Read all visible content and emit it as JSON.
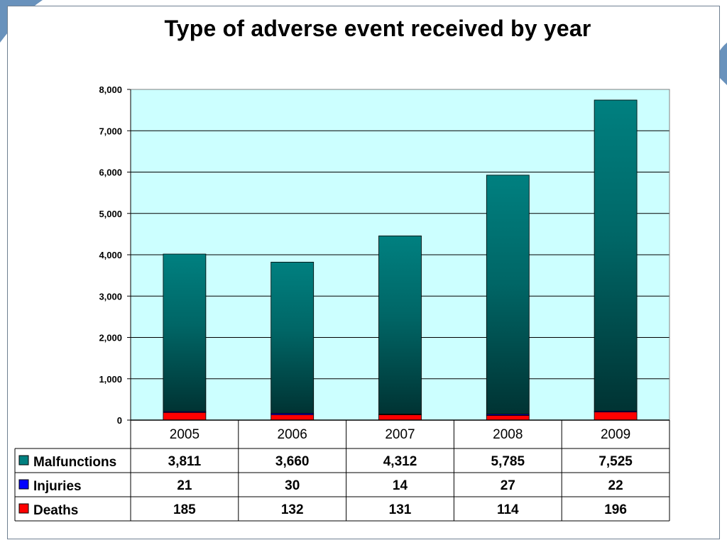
{
  "colors": {
    "plot_background": "#ccffff",
    "malfunctions_top": "#008080",
    "malfunctions_bottom": "#003333",
    "injuries": "#0000ff",
    "deaths": "#ff0000",
    "slide_accent": "#4f7fb0"
  },
  "chart_data": {
    "type": "bar",
    "stacked": true,
    "title": "Type of adverse event received by year",
    "categories": [
      "2005",
      "2006",
      "2007",
      "2008",
      "2009"
    ],
    "series": [
      {
        "name": "Malfunctions",
        "values": [
          3811,
          3660,
          4312,
          5785,
          7525
        ]
      },
      {
        "name": "Injuries",
        "values": [
          21,
          30,
          14,
          27,
          22
        ]
      },
      {
        "name": "Deaths",
        "values": [
          185,
          132,
          131,
          114,
          196
        ]
      }
    ],
    "stack_order_bottom_up": [
      "Deaths",
      "Injuries",
      "Malfunctions"
    ],
    "ylim": [
      0,
      8000
    ],
    "yticks": [
      0,
      1000,
      2000,
      3000,
      4000,
      5000,
      6000,
      7000,
      8000
    ],
    "ytick_labels": [
      "0",
      "1,000",
      "2,000",
      "3,000",
      "4,000",
      "5,000",
      "6,000",
      "7,000",
      "8,000"
    ],
    "grid": true,
    "legend": "data-table-below",
    "data_table": {
      "rows": [
        {
          "label": "Malfunctions",
          "values": [
            "3,811",
            "3,660",
            "4,312",
            "5,785",
            "7,525"
          ]
        },
        {
          "label": "Injuries",
          "values": [
            "21",
            "30",
            "14",
            "27",
            "22"
          ]
        },
        {
          "label": "Deaths",
          "values": [
            "185",
            "132",
            "131",
            "114",
            "196"
          ]
        }
      ]
    }
  }
}
